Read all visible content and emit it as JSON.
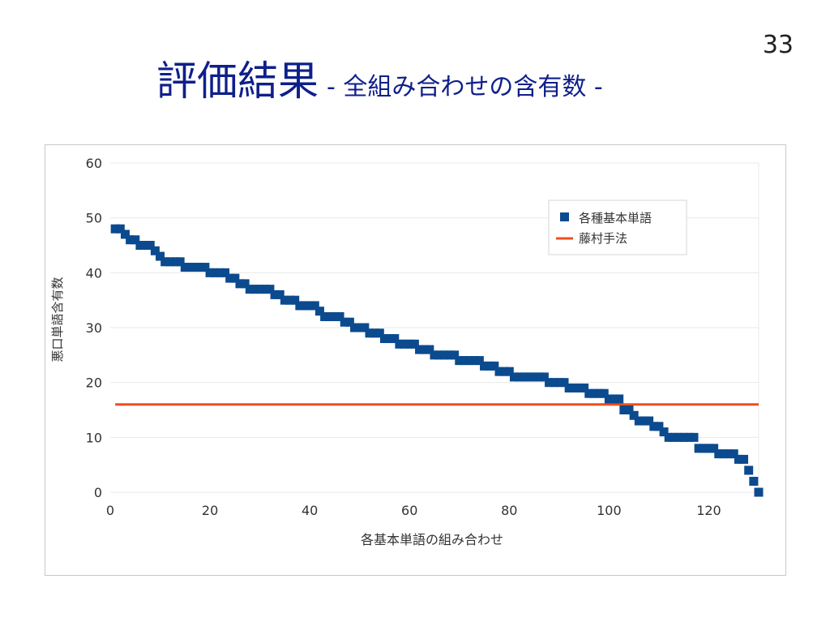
{
  "slide": {
    "number": "33",
    "title_main": "評価結果",
    "title_sub": "- 全組み合わせの含有数 -"
  },
  "colors": {
    "title": "#0f1f8a",
    "series_marker": "#0b4a8e",
    "baseline_line": "#f04e1c",
    "grid": "#e9e9e9"
  },
  "chart_data": {
    "type": "scatter",
    "xlabel": "各基本単語の組み合わせ",
    "ylabel": "悪口単語含有数",
    "xlim": [
      0,
      130
    ],
    "ylim": [
      0,
      60
    ],
    "x_ticks": [
      "0",
      "20",
      "40",
      "60",
      "80",
      "100",
      "120"
    ],
    "y_ticks": [
      "0",
      "10",
      "20",
      "30",
      "40",
      "50",
      "60"
    ],
    "grid": true,
    "legend_position": "top-right",
    "series": [
      {
        "name": "各種基本単語",
        "marker": "square",
        "x": [
          1,
          2,
          3,
          4,
          5,
          6,
          7,
          8,
          9,
          10,
          11,
          12,
          13,
          14,
          15,
          16,
          17,
          18,
          19,
          20,
          21,
          22,
          23,
          24,
          25,
          26,
          27,
          28,
          29,
          30,
          31,
          32,
          33,
          34,
          35,
          36,
          37,
          38,
          39,
          40,
          41,
          42,
          43,
          44,
          45,
          46,
          47,
          48,
          49,
          50,
          51,
          52,
          53,
          54,
          55,
          56,
          57,
          58,
          59,
          60,
          61,
          62,
          63,
          64,
          65,
          66,
          67,
          68,
          69,
          70,
          71,
          72,
          73,
          74,
          75,
          76,
          77,
          78,
          79,
          80,
          81,
          82,
          83,
          84,
          85,
          86,
          87,
          88,
          89,
          90,
          91,
          92,
          93,
          94,
          95,
          96,
          97,
          98,
          99,
          100,
          101,
          102,
          103,
          104,
          105,
          106,
          107,
          108,
          109,
          110,
          111,
          112,
          113,
          114,
          115,
          116,
          117,
          118,
          119,
          120,
          121,
          122,
          123,
          124,
          125,
          126,
          127,
          128,
          129,
          130
        ],
        "y": [
          48,
          48,
          47,
          46,
          46,
          45,
          45,
          45,
          44,
          43,
          42,
          42,
          42,
          42,
          41,
          41,
          41,
          41,
          41,
          40,
          40,
          40,
          40,
          39,
          39,
          38,
          38,
          37,
          37,
          37,
          37,
          37,
          36,
          36,
          35,
          35,
          35,
          34,
          34,
          34,
          34,
          33,
          32,
          32,
          32,
          32,
          31,
          31,
          30,
          30,
          30,
          29,
          29,
          29,
          28,
          28,
          28,
          27,
          27,
          27,
          27,
          26,
          26,
          26,
          25,
          25,
          25,
          25,
          25,
          24,
          24,
          24,
          24,
          24,
          23,
          23,
          23,
          22,
          22,
          22,
          21,
          21,
          21,
          21,
          21,
          21,
          21,
          20,
          20,
          20,
          20,
          19,
          19,
          19,
          19,
          18,
          18,
          18,
          18,
          17,
          17,
          17,
          15,
          15,
          14,
          13,
          13,
          13,
          12,
          12,
          11,
          10,
          10,
          10,
          10,
          10,
          10,
          8,
          8,
          8,
          8,
          7,
          7,
          7,
          7,
          6,
          6,
          4,
          2,
          0
        ]
      },
      {
        "name": "藤村手法",
        "type": "line",
        "x": [
          1,
          130
        ],
        "y": [
          16,
          16
        ]
      }
    ]
  }
}
